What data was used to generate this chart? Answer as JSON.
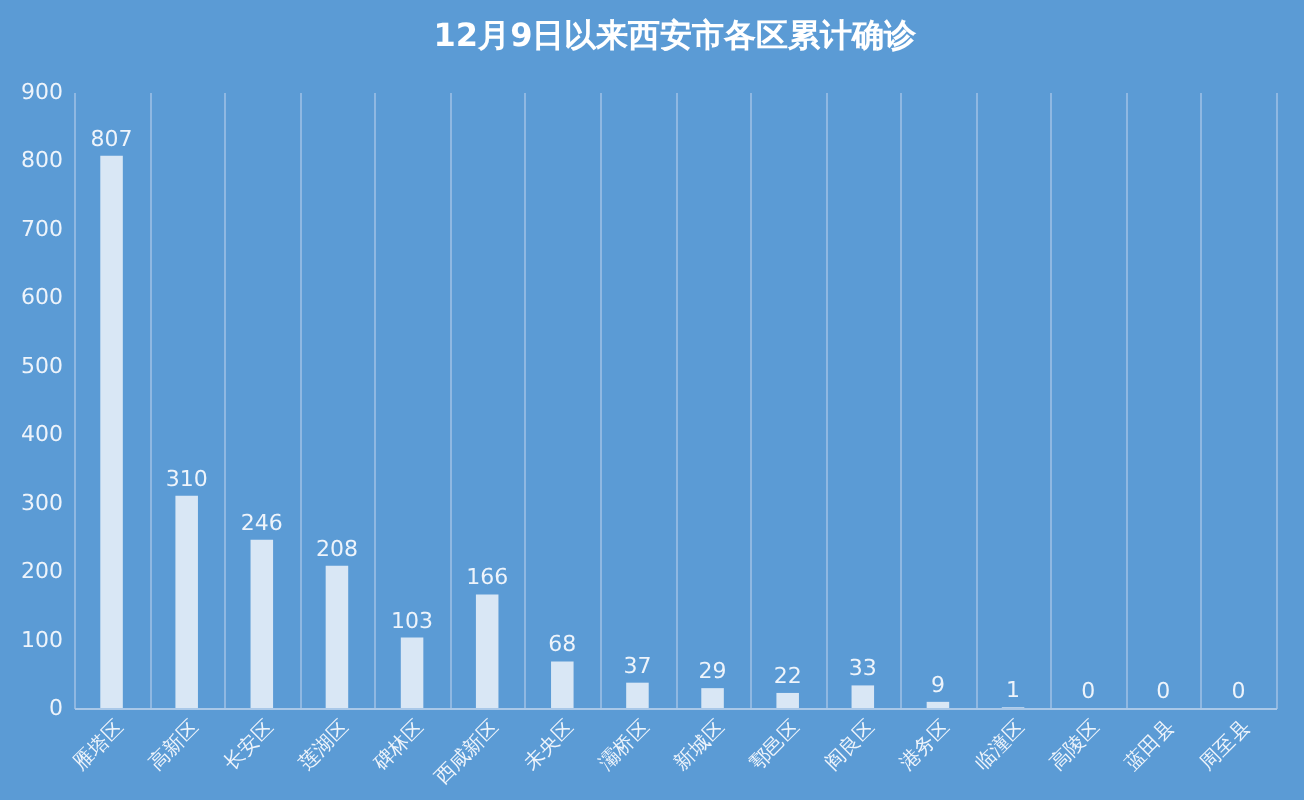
{
  "chart_data": {
    "type": "bar",
    "title": "12月9日以来西安市各区累计确诊",
    "categories": [
      "雁塔区",
      "高新区",
      "长安区",
      "莲湖区",
      "碑林区",
      "西咸新区",
      "未央区",
      "灞桥区",
      "新城区",
      "鄠邑区",
      "阎良区",
      "港务区",
      "临潼区",
      "高陵区",
      "蓝田县",
      "周至县"
    ],
    "values": [
      807,
      310,
      246,
      208,
      103,
      166,
      68,
      37,
      29,
      22,
      33,
      9,
      1,
      0,
      0,
      0
    ],
    "color": "#d9e7f5",
    "ylim": [
      0,
      900
    ],
    "yticks": [
      0,
      100,
      200,
      300,
      400,
      500,
      600,
      700,
      800,
      900
    ],
    "grid": "x",
    "data_labels": true
  }
}
